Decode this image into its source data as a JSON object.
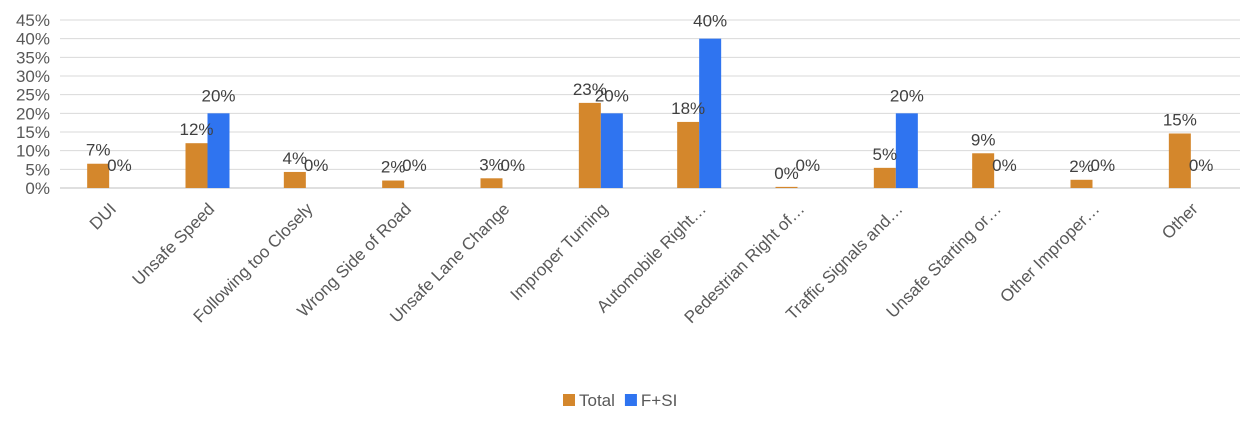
{
  "chart_data": {
    "type": "bar",
    "categories": [
      "DUI",
      "Unsafe Speed",
      "Following too Closely",
      "Wrong Side of Road",
      "Unsafe Lane Change",
      "Improper Turning",
      "Automobile Right…",
      "Pedestrian Right of…",
      "Traffic Signals and…",
      "Unsafe Starting or…",
      "Other Improper…",
      "Other"
    ],
    "series": [
      {
        "name": "Total",
        "color": "#D4872C",
        "values": [
          6.5,
          12,
          4.3,
          2,
          2.6,
          22.8,
          17.7,
          0.3,
          5.4,
          9.3,
          2.2,
          14.6
        ],
        "labels": [
          "7%",
          "12%",
          "4%",
          "2%",
          "3%",
          "23%",
          "18%",
          "0%",
          "5%",
          "9%",
          "2%",
          "15%"
        ]
      },
      {
        "name": "F+SI",
        "color": "#2F74F0",
        "values": [
          0,
          20,
          0,
          0,
          0,
          20,
          40,
          0,
          20,
          0,
          0,
          0
        ],
        "labels": [
          "0%",
          "20%",
          "0%",
          "0%",
          "0%",
          "20%",
          "40%",
          "0%",
          "20%",
          "0%",
          "0%",
          "0%"
        ]
      }
    ],
    "y_ticks": [
      "0%",
      "5%",
      "10%",
      "15%",
      "20%",
      "25%",
      "30%",
      "35%",
      "40%",
      "45%"
    ],
    "ylim": [
      0,
      45
    ],
    "grid": true,
    "legend_position": "bottom"
  }
}
